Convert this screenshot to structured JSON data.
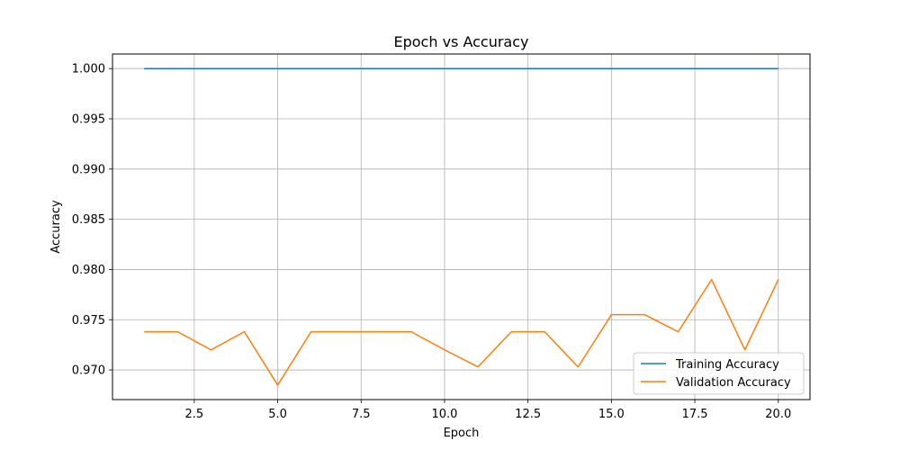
{
  "chart_data": {
    "type": "line",
    "title": "Epoch vs Accuracy",
    "xlabel": "Epoch",
    "ylabel": "Accuracy",
    "xlim": [
      0.05,
      20.95
    ],
    "ylim": [
      0.96705,
      1.00145
    ],
    "xticks": [
      2.5,
      5.0,
      7.5,
      10.0,
      12.5,
      15.0,
      17.5,
      20.0
    ],
    "xtick_labels": [
      "2.5",
      "5.0",
      "7.5",
      "10.0",
      "12.5",
      "15.0",
      "17.5",
      "20.0"
    ],
    "yticks": [
      0.97,
      0.975,
      0.98,
      0.985,
      0.99,
      0.995,
      1.0
    ],
    "ytick_labels": [
      "0.970",
      "0.975",
      "0.980",
      "0.985",
      "0.990",
      "0.995",
      "1.000"
    ],
    "grid": true,
    "legend_position": "lower-right",
    "x": [
      1,
      2,
      3,
      4,
      5,
      6,
      7,
      8,
      9,
      10,
      11,
      12,
      13,
      14,
      15,
      16,
      17,
      18,
      19,
      20
    ],
    "series": [
      {
        "name": "Training Accuracy",
        "color": "#1f77b4",
        "values": [
          1.0,
          1.0,
          1.0,
          1.0,
          1.0,
          1.0,
          1.0,
          1.0,
          1.0,
          1.0,
          1.0,
          1.0,
          1.0,
          1.0,
          1.0,
          1.0,
          1.0,
          1.0,
          1.0,
          1.0
        ]
      },
      {
        "name": "Validation Accuracy",
        "color": "#ff7f0e",
        "values": [
          0.9738,
          0.9738,
          0.972,
          0.9738,
          0.9685,
          0.9738,
          0.9738,
          0.9738,
          0.9738,
          0.972,
          0.9703,
          0.9738,
          0.9738,
          0.9703,
          0.9755,
          0.9755,
          0.9738,
          0.979,
          0.972,
          0.979
        ]
      }
    ]
  }
}
